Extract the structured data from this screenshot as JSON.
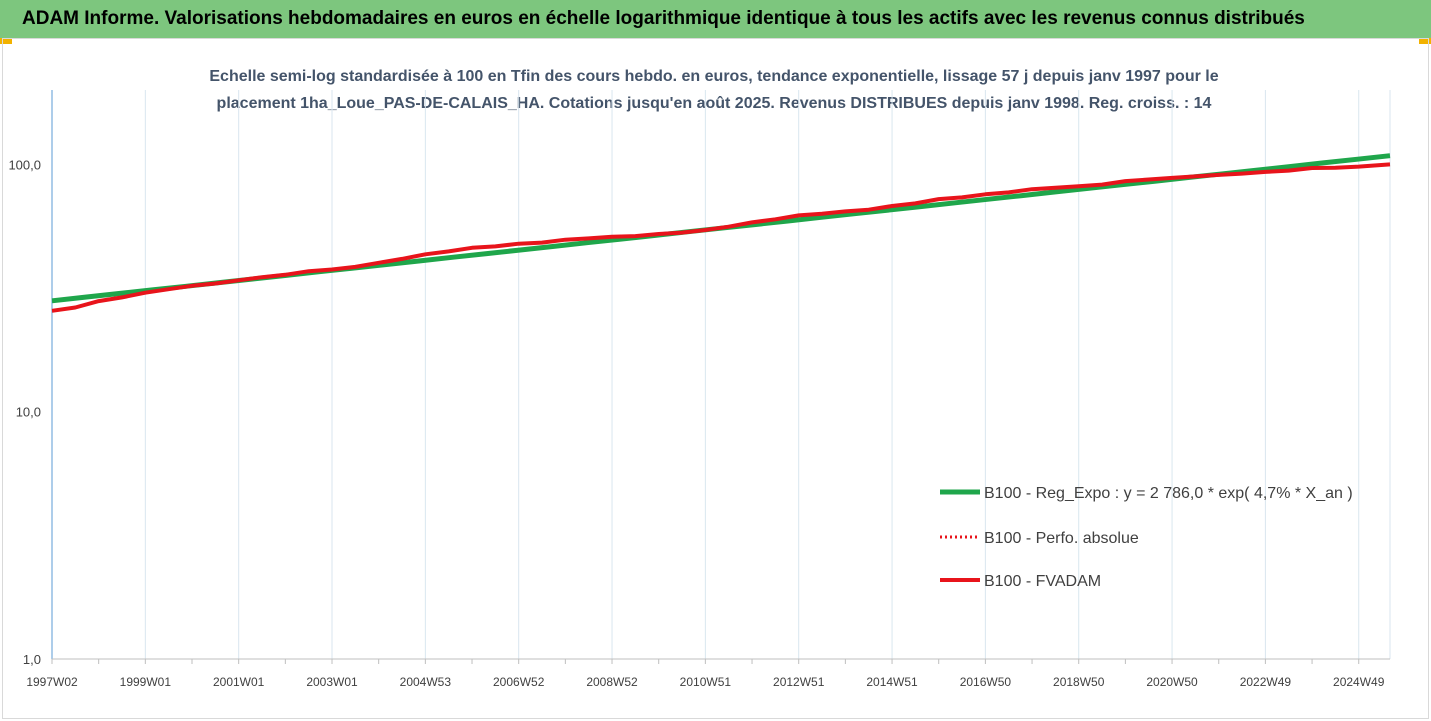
{
  "header": {
    "title": "ADAM Informe. Valorisations hebdomadaires en euros en échelle logarithmique identique à tous les actifs avec les revenus connus distribués"
  },
  "colors": {
    "banner": "#7dc67e",
    "corner": "#f2b200",
    "trend": "#1fa64b",
    "fvadam": "#e8141b",
    "perfo": "#e8141b",
    "subtitle": "#44546a"
  },
  "chart_data": {
    "type": "line",
    "subtitle_lines": [
      "Echelle semi-log standardisée à 100 en Tfin des cours hebdo. en euros, tendance exponentielle, lissage 57 j depuis janv 1997 pour le",
      "placement 1ha_Loue_PAS-DE-CALAIS_HA. Cotations jusqu'en août 2025. Revenus DISTRIBUES depuis janv 1998. Reg. croiss. : 14"
    ],
    "y_scale": "log",
    "ylim": [
      1,
      200
    ],
    "y_ticks": [
      {
        "value": 1,
        "label": "1,0"
      },
      {
        "value": 10,
        "label": "10,0"
      },
      {
        "value": 100,
        "label": "100,0"
      }
    ],
    "xlim": [
      1997.0,
      2025.67
    ],
    "x_ticks": [
      {
        "value": 1997.0,
        "label": "1997W02"
      },
      {
        "value": 1999.0,
        "label": "1999W01"
      },
      {
        "value": 2001.0,
        "label": "2001W01"
      },
      {
        "value": 2003.0,
        "label": "2003W01"
      },
      {
        "value": 2005.0,
        "label": "2004W53"
      },
      {
        "value": 2007.0,
        "label": "2006W52"
      },
      {
        "value": 2009.0,
        "label": "2008W52"
      },
      {
        "value": 2011.0,
        "label": "2010W51"
      },
      {
        "value": 2013.0,
        "label": "2012W51"
      },
      {
        "value": 2015.0,
        "label": "2014W51"
      },
      {
        "value": 2017.0,
        "label": "2016W50"
      },
      {
        "value": 2019.0,
        "label": "2018W50"
      },
      {
        "value": 2021.0,
        "label": "2020W50"
      },
      {
        "value": 2023.0,
        "label": "2022W49"
      },
      {
        "value": 2025.0,
        "label": "2024W49"
      }
    ],
    "grid": "vertical",
    "legend_position": "center-right",
    "series": [
      {
        "name": "B100 - Reg_Expo : y = 2 786,0 * exp( 4,7% *  X_an )",
        "style": "solid",
        "x": [
          1997.0,
          2025.67
        ],
        "values": [
          28.1,
          108.5
        ]
      },
      {
        "name": "B100 - Perfo. absolue",
        "style": "dotted",
        "x": [],
        "values": []
      },
      {
        "name": "B100 - FVADAM",
        "style": "solid",
        "x": [
          1997.0,
          1997.5,
          1998.0,
          1998.5,
          1999.0,
          1999.5,
          2000.0,
          2000.5,
          2001.0,
          2001.5,
          2002.0,
          2002.5,
          2003.0,
          2003.5,
          2004.0,
          2004.5,
          2005.0,
          2005.5,
          2006.0,
          2006.5,
          2007.0,
          2007.5,
          2008.0,
          2008.5,
          2009.0,
          2009.5,
          2010.0,
          2010.5,
          2011.0,
          2011.5,
          2012.0,
          2012.5,
          2013.0,
          2013.5,
          2014.0,
          2014.5,
          2015.0,
          2015.5,
          2016.0,
          2016.5,
          2017.0,
          2017.5,
          2018.0,
          2018.5,
          2019.0,
          2019.5,
          2020.0,
          2020.5,
          2021.0,
          2021.5,
          2022.0,
          2022.5,
          2023.0,
          2023.5,
          2024.0,
          2024.5,
          2025.0,
          2025.67
        ],
        "values": [
          25.6,
          26.4,
          28.0,
          29.0,
          30.3,
          31.3,
          32.3,
          33.0,
          34.0,
          35.0,
          35.8,
          37.0,
          37.6,
          38.5,
          40.0,
          41.5,
          43.3,
          44.5,
          46.0,
          46.6,
          47.8,
          48.3,
          49.6,
          50.2,
          51.0,
          51.3,
          52.3,
          53.0,
          54.3,
          56.0,
          58.3,
          60.0,
          62.2,
          63.2,
          64.6,
          65.6,
          67.9,
          69.6,
          72.4,
          73.6,
          75.7,
          77.1,
          79.4,
          80.5,
          81.6,
          82.9,
          85.6,
          86.9,
          88.2,
          89.5,
          90.7,
          91.8,
          93.3,
          94.4,
          96.7,
          97.0,
          98.0,
          100.0
        ]
      }
    ]
  }
}
